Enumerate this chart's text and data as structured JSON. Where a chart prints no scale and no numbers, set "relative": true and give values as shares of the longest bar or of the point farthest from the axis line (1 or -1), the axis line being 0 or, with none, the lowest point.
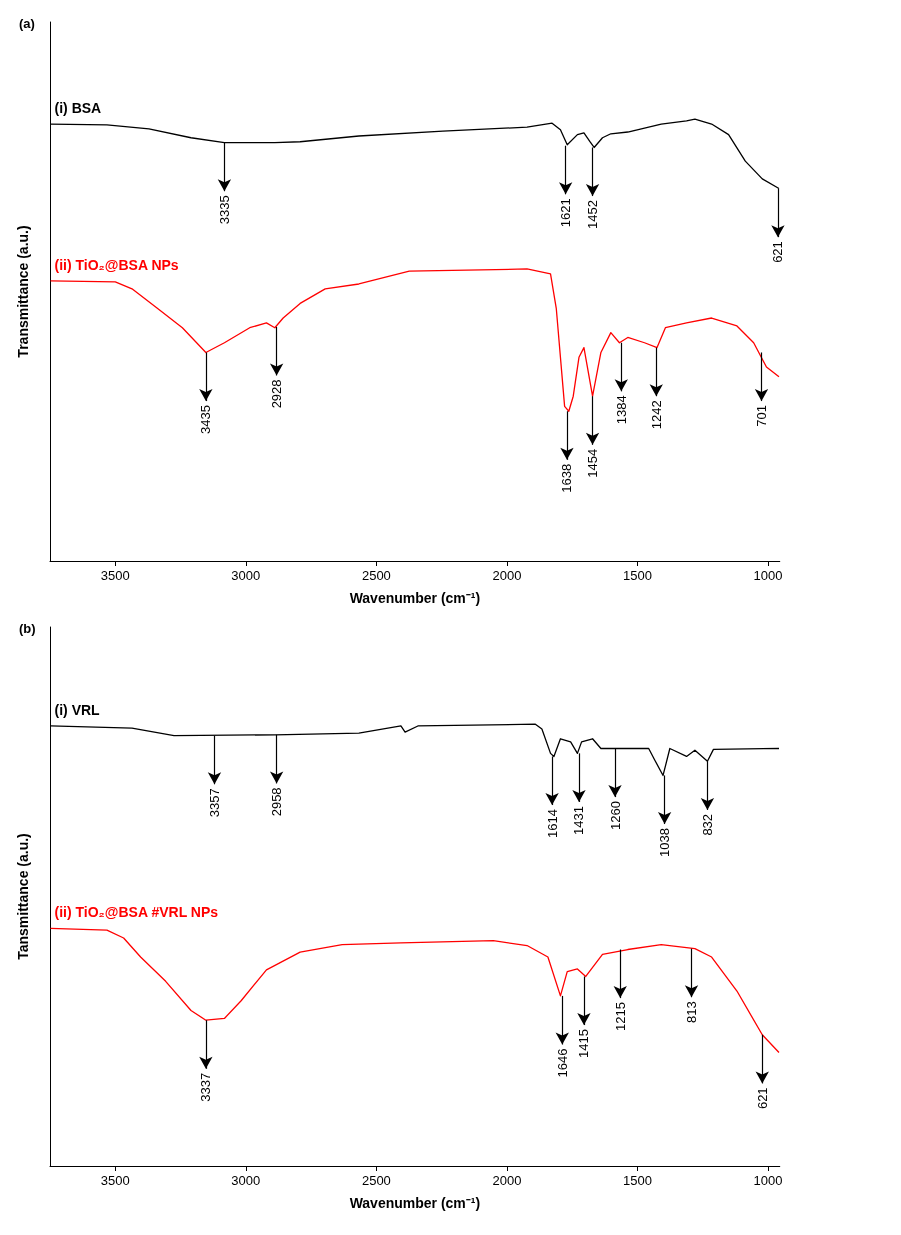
{
  "chart_data": [
    {
      "type": "line",
      "title": "(a)",
      "xlabel": "Wavenumber (cm⁻¹)",
      "ylabel": "Transmittance (a.u.)",
      "relative": true,
      "xlim": [
        3750,
        955
      ],
      "xticks": [
        3500,
        3000,
        2500,
        2000,
        1500,
        1000
      ],
      "series": [
        {
          "name": "(i) BSA",
          "color": "#000000",
          "x": [
            3748,
            3532,
            3371,
            3210,
            3082,
            2889,
            2792,
            2567,
            2245,
            1923,
            1827,
            1795,
            1769,
            1730,
            1705,
            1682,
            1666,
            1634,
            1602,
            1537,
            1409,
            1312,
            1280,
            1216,
            1151,
            1087,
            1022,
            958
          ],
          "values": [
            0.989,
            0.987,
            0.978,
            0.958,
            0.947,
            0.947,
            0.949,
            0.962,
            0.973,
            0.982,
            0.991,
            0.976,
            0.942,
            0.965,
            0.969,
            0.949,
            0.936,
            0.958,
            0.967,
            0.971,
            0.989,
            0.996,
            1.0,
            0.989,
            0.965,
            0.905,
            0.865,
            0.843
          ]
        },
        {
          "name": "(ii) TiO₂@BSA NPs",
          "color": "#ff0000",
          "x": [
            3748,
            3500,
            3436,
            3339,
            3243,
            3153,
            3082,
            2985,
            2921,
            2889,
            2857,
            2792,
            2696,
            2567,
            2374,
            1923,
            1833,
            1811,
            1779,
            1763,
            1746,
            1724,
            1705,
            1672,
            1640,
            1602,
            1569,
            1537,
            1473,
            1425,
            1393,
            1312,
            1216,
            1119,
            1055,
            1006,
            958
          ],
          "values": [
            0.634,
            0.632,
            0.616,
            0.572,
            0.528,
            0.472,
            0.494,
            0.528,
            0.539,
            0.528,
            0.55,
            0.583,
            0.616,
            0.627,
            0.656,
            0.661,
            0.65,
            0.572,
            0.35,
            0.339,
            0.373,
            0.461,
            0.483,
            0.373,
            0.472,
            0.517,
            0.494,
            0.506,
            0.494,
            0.483,
            0.528,
            0.539,
            0.55,
            0.532,
            0.494,
            0.439,
            0.417
          ]
        }
      ],
      "annotations": [
        {
          "text": "3335",
          "x": 3082,
          "y": 0.947
        },
        {
          "text": "1621",
          "x": 1775,
          "y": 0.94
        },
        {
          "text": "1452",
          "x": 1672,
          "y": 0.936
        },
        {
          "text": "621",
          "x": 962,
          "y": 0.843
        },
        {
          "text": "3435",
          "x": 3153,
          "y": 0.472
        },
        {
          "text": "2928",
          "x": 2882,
          "y": 0.53
        },
        {
          "text": "1638",
          "x": 1770,
          "y": 0.339
        },
        {
          "text": "1454",
          "x": 1672,
          "y": 0.373
        },
        {
          "text": "1384",
          "x": 1562,
          "y": 0.494
        },
        {
          "text": "1242",
          "x": 1428,
          "y": 0.483
        },
        {
          "text": "701",
          "x": 1025,
          "y": 0.472
        }
      ]
    },
    {
      "type": "line",
      "title": "(b)",
      "xlabel": "Wavenumber (cm⁻¹)",
      "ylabel": "Tansmittance (a.u.)",
      "relative": true,
      "xlim": [
        3750,
        955
      ],
      "xticks": [
        3500,
        3000,
        2500,
        2000,
        1500,
        1000
      ],
      "series": [
        {
          "name": "(i) VRL",
          "color": "#000000",
          "x": [
            3748,
            3436,
            3275,
            2889,
            2567,
            2406,
            2390,
            2341,
            1891,
            1866,
            1833,
            1820,
            1795,
            1756,
            1730,
            1714,
            1672,
            1640,
            1602,
            1457,
            1434,
            1402,
            1376,
            1312,
            1280,
            1232,
            1209,
            958
          ],
          "values": [
            0.996,
            0.991,
            0.974,
            0.976,
            0.98,
            0.996,
            0.982,
            0.996,
            1.0,
            0.989,
            0.934,
            0.927,
            0.967,
            0.96,
            0.934,
            0.96,
            0.967,
            0.945,
            0.945,
            0.945,
            0.919,
            0.884,
            0.945,
            0.927,
            0.941,
            0.916,
            0.943,
            0.945
          ]
        },
        {
          "name": "(ii) TiO₂@BSA #VRL NPs",
          "color": "#ff0000",
          "x": [
            3748,
            3532,
            3468,
            3403,
            3307,
            3210,
            3153,
            3082,
            3018,
            2921,
            2792,
            2631,
            2406,
            2052,
            1923,
            1843,
            1795,
            1769,
            1730,
            1698,
            1634,
            1537,
            1409,
            1280,
            1216,
            1119,
            1022,
            958
          ],
          "values": [
            0.538,
            0.534,
            0.516,
            0.473,
            0.418,
            0.352,
            0.33,
            0.334,
            0.374,
            0.444,
            0.484,
            0.501,
            0.505,
            0.51,
            0.499,
            0.473,
            0.385,
            0.44,
            0.446,
            0.429,
            0.479,
            0.49,
            0.501,
            0.492,
            0.473,
            0.396,
            0.297,
            0.257
          ]
        }
      ],
      "annotations": [
        {
          "text": "3357",
          "x": 3120,
          "y": 0.974
        },
        {
          "text": "2958",
          "x": 2882,
          "y": 0.976
        },
        {
          "text": "1614",
          "x": 1827,
          "y": 0.927
        },
        {
          "text": "1431",
          "x": 1724,
          "y": 0.934
        },
        {
          "text": "1260",
          "x": 1586,
          "y": 0.945
        },
        {
          "text": "1038",
          "x": 1396,
          "y": 0.884
        },
        {
          "text": "832",
          "x": 1232,
          "y": 0.916
        },
        {
          "text": "3337",
          "x": 3153,
          "y": 0.33
        },
        {
          "text": "1646",
          "x": 1788,
          "y": 0.385
        },
        {
          "text": "1415",
          "x": 1705,
          "y": 0.429
        },
        {
          "text": "1215",
          "x": 1566,
          "y": 0.49
        },
        {
          "text": "813",
          "x": 1293,
          "y": 0.492
        },
        {
          "text": "621",
          "x": 1022,
          "y": 0.297
        }
      ]
    }
  ]
}
